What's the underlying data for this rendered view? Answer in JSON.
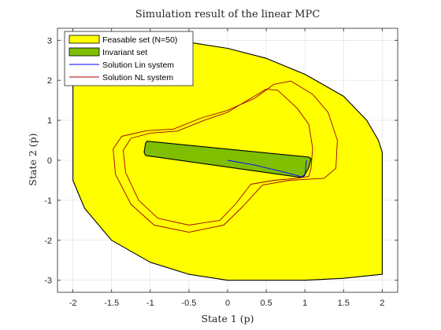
{
  "chart_data": {
    "type": "area",
    "title": "Simulation result of the linear MPC",
    "xlabel": "State 1 (p)",
    "ylabel": "State 2 (ṗ)",
    "xlim": [
      -2.2,
      2.2
    ],
    "ylim": [
      -3.3,
      3.3
    ],
    "xticks": [
      -2,
      -1.5,
      -1,
      -0.5,
      0,
      0.5,
      1,
      1.5,
      2
    ],
    "yticks": [
      -3,
      -2,
      -1,
      0,
      1,
      2,
      3
    ],
    "xtick_labels": [
      "-2",
      "-1.5",
      "-1",
      "-0.5",
      "0",
      "0.5",
      "1",
      "1.5",
      "2"
    ],
    "ytick_labels": [
      "-3",
      "-2",
      "-1",
      "0",
      "1",
      "2",
      "3"
    ],
    "grid": true,
    "legend_position": "top-left",
    "series": [
      {
        "name": "Feasable set (N=50)",
        "kind": "filled-region",
        "fill": "#ffff00",
        "edge": "#000000",
        "boundary": [
          [
            -2.0,
            3.0
          ],
          [
            -1.0,
            3.0
          ],
          [
            -0.5,
            2.95
          ],
          [
            0.0,
            2.8
          ],
          [
            0.5,
            2.55
          ],
          [
            1.0,
            2.15
          ],
          [
            1.5,
            1.6
          ],
          [
            1.8,
            1.0
          ],
          [
            1.95,
            0.5
          ],
          [
            2.0,
            0.2
          ],
          [
            2.0,
            -2.85
          ],
          [
            1.5,
            -2.95
          ],
          [
            1.0,
            -3.0
          ],
          [
            0.0,
            -3.0
          ],
          [
            -0.5,
            -2.85
          ],
          [
            -1.0,
            -2.55
          ],
          [
            -1.5,
            -2.0
          ],
          [
            -1.85,
            -1.2
          ],
          [
            -2.0,
            -0.5
          ],
          [
            -2.0,
            3.0
          ]
        ]
      },
      {
        "name": "Invariant set",
        "kind": "filled-region",
        "fill": "#7fbf00",
        "edge": "#000000",
        "boundary": [
          [
            -1.06,
            0.43
          ],
          [
            -1.04,
            0.48
          ],
          [
            -1.0,
            0.47
          ],
          [
            1.05,
            0.08
          ],
          [
            1.08,
            0.04
          ],
          [
            1.05,
            -0.18
          ],
          [
            1.0,
            -0.36
          ],
          [
            0.95,
            -0.43
          ],
          [
            -1.06,
            0.12
          ],
          [
            -1.08,
            0.2
          ],
          [
            -1.06,
            0.43
          ]
        ]
      },
      {
        "name": "Solution Lin system",
        "kind": "line",
        "color": "#0000ff",
        "points": [
          [
            0.0,
            0.0
          ],
          [
            0.35,
            -0.12
          ],
          [
            0.7,
            -0.28
          ],
          [
            0.9,
            -0.38
          ],
          [
            0.97,
            -0.42
          ],
          [
            1.0,
            -0.38
          ],
          [
            1.02,
            0.0
          ]
        ]
      },
      {
        "name": "Solution NL system",
        "kind": "line",
        "color": "#a00000",
        "points": [
          [
            -0.65,
            0.73
          ],
          [
            -1.0,
            0.68
          ],
          [
            -1.25,
            0.55
          ],
          [
            -1.35,
            0.25
          ],
          [
            -1.32,
            -0.3
          ],
          [
            -1.15,
            -1.0
          ],
          [
            -0.9,
            -1.45
          ],
          [
            -0.5,
            -1.62
          ],
          [
            -0.1,
            -1.5
          ],
          [
            0.1,
            -1.1
          ],
          [
            0.3,
            -0.6
          ],
          [
            0.6,
            -0.5
          ],
          [
            0.9,
            -0.45
          ],
          [
            1.05,
            -0.4
          ],
          [
            1.08,
            -0.2
          ],
          [
            1.1,
            0.3
          ],
          [
            1.05,
            0.9
          ],
          [
            0.9,
            1.3
          ],
          [
            0.65,
            1.75
          ],
          [
            0.5,
            1.78
          ],
          [
            0.3,
            1.55
          ],
          [
            0.0,
            1.2
          ],
          [
            -0.3,
            1.0
          ],
          [
            -0.65,
            0.73
          ]
        ],
        "points2": [
          [
            -0.7,
            0.78
          ],
          [
            -1.05,
            0.74
          ],
          [
            -1.37,
            0.6
          ],
          [
            -1.48,
            0.28
          ],
          [
            -1.45,
            -0.35
          ],
          [
            -1.25,
            -1.1
          ],
          [
            -0.95,
            -1.62
          ],
          [
            -0.5,
            -1.8
          ],
          [
            -0.05,
            -1.62
          ],
          [
            0.2,
            -1.15
          ],
          [
            0.45,
            -0.62
          ],
          [
            0.8,
            -0.5
          ],
          [
            1.25,
            -0.45
          ],
          [
            1.4,
            -0.2
          ],
          [
            1.42,
            0.5
          ],
          [
            1.3,
            1.2
          ],
          [
            1.1,
            1.65
          ],
          [
            0.82,
            1.98
          ],
          [
            0.6,
            1.9
          ],
          [
            0.35,
            1.55
          ],
          [
            0.0,
            1.25
          ],
          [
            -0.35,
            1.05
          ],
          [
            -0.7,
            0.78
          ]
        ]
      }
    ]
  }
}
